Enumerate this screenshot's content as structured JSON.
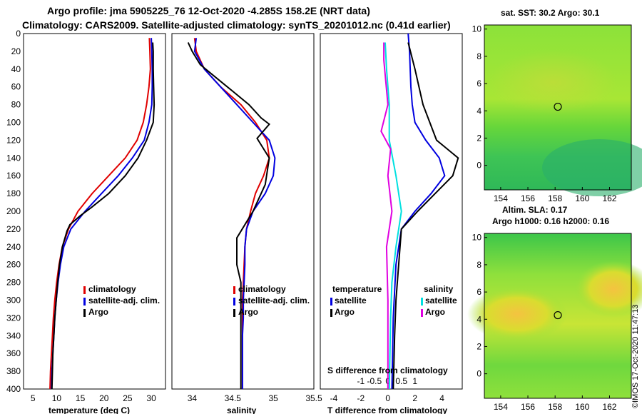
{
  "header": {
    "title_line1": "Argo profile: jma 5905225_76 12-Oct-2020 -4.285S 158.2E (NRT data)",
    "title_line2": "Climatology: CARS2009. Satellite-adjusted climatology: synTS_20201012.nc (0.41d earlier)"
  },
  "colors": {
    "climatology": "#e00000",
    "satellite": "#0000e0",
    "argo": "#000000",
    "t_satellite": "#00e0e0",
    "s_diff": "#e000e0"
  },
  "chart_data": [
    {
      "type": "line",
      "name": "temperature",
      "xlabel": "temperature (deg C)",
      "xlim": [
        3,
        33
      ],
      "ylim": [
        400,
        0
      ],
      "xticks": [
        "5",
        "10",
        "15",
        "20",
        "25",
        "30"
      ],
      "yticks": [
        "0",
        "20",
        "40",
        "60",
        "80",
        "100",
        "120",
        "140",
        "160",
        "180",
        "200",
        "220",
        "240",
        "260",
        "280",
        "300",
        "320",
        "340",
        "360",
        "380",
        "400"
      ],
      "legend": [
        "climatology",
        "satellite-adj. clim.",
        "Argo"
      ],
      "series": [
        {
          "name": "climatology",
          "points": [
            [
              29.6,
              5
            ],
            [
              29.7,
              20
            ],
            [
              29.8,
              40
            ],
            [
              29.5,
              60
            ],
            [
              29.0,
              80
            ],
            [
              28.3,
              100
            ],
            [
              27.0,
              120
            ],
            [
              24.5,
              140
            ],
            [
              21.0,
              160
            ],
            [
              17.5,
              180
            ],
            [
              14.5,
              200
            ],
            [
              12.5,
              220
            ],
            [
              11.2,
              240
            ],
            [
              10.5,
              260
            ],
            [
              10.0,
              280
            ],
            [
              9.6,
              300
            ],
            [
              9.3,
              320
            ],
            [
              9.1,
              340
            ],
            [
              8.9,
              360
            ],
            [
              8.7,
              380
            ],
            [
              8.6,
              400
            ]
          ]
        },
        {
          "name": "satellite-adj. clim.",
          "points": [
            [
              30.0,
              5
            ],
            [
              30.1,
              20
            ],
            [
              30.2,
              40
            ],
            [
              30.2,
              60
            ],
            [
              30.1,
              80
            ],
            [
              29.5,
              100
            ],
            [
              28.5,
              120
            ],
            [
              26.0,
              140
            ],
            [
              23.0,
              160
            ],
            [
              19.5,
              180
            ],
            [
              16.0,
              200
            ],
            [
              13.0,
              220
            ],
            [
              11.5,
              240
            ],
            [
              10.8,
              260
            ],
            [
              10.3,
              280
            ],
            [
              9.9,
              300
            ],
            [
              9.6,
              320
            ],
            [
              9.4,
              340
            ],
            [
              9.2,
              360
            ],
            [
              9.0,
              380
            ],
            [
              8.9,
              400
            ]
          ]
        },
        {
          "name": "Argo",
          "points": [
            [
              30.3,
              10
            ],
            [
              30.4,
              20
            ],
            [
              30.4,
              40
            ],
            [
              30.5,
              60
            ],
            [
              30.6,
              80
            ],
            [
              30.4,
              100
            ],
            [
              29.0,
              120
            ],
            [
              27.2,
              140
            ],
            [
              24.5,
              160
            ],
            [
              21.0,
              180
            ],
            [
              17.5,
              195
            ],
            [
              15.0,
              205
            ],
            [
              12.8,
              215
            ],
            [
              12.2,
              222
            ],
            [
              11.2,
              240
            ],
            [
              10.6,
              260
            ],
            [
              10.2,
              280
            ],
            [
              9.9,
              300
            ],
            [
              9.6,
              320
            ],
            [
              9.4,
              340
            ],
            [
              9.2,
              360
            ],
            [
              9.1,
              380
            ],
            [
              9.0,
              400
            ]
          ]
        }
      ]
    },
    {
      "type": "line",
      "name": "salinity",
      "xlabel": "salinity",
      "xlim": [
        33.75,
        35.5
      ],
      "ylim": [
        400,
        0
      ],
      "xticks": [
        "34",
        "34.5",
        "35",
        "35.5"
      ],
      "legend": [
        "climatology",
        "satellite-adj. clim.",
        "Argo"
      ],
      "series": [
        {
          "name": "climatology",
          "points": [
            [
              34.03,
              5
            ],
            [
              34.05,
              20
            ],
            [
              34.15,
              40
            ],
            [
              34.35,
              60
            ],
            [
              34.6,
              80
            ],
            [
              34.78,
              100
            ],
            [
              34.92,
              120
            ],
            [
              34.95,
              140
            ],
            [
              34.88,
              160
            ],
            [
              34.78,
              180
            ],
            [
              34.72,
              200
            ],
            [
              34.67,
              220
            ],
            [
              34.65,
              240
            ],
            [
              34.64,
              260
            ],
            [
              34.63,
              280
            ],
            [
              34.62,
              300
            ],
            [
              34.62,
              320
            ],
            [
              34.62,
              340
            ],
            [
              34.62,
              360
            ],
            [
              34.62,
              380
            ],
            [
              34.62,
              400
            ]
          ]
        },
        {
          "name": "satellite-adj. clim.",
          "points": [
            [
              34.05,
              5
            ],
            [
              34.03,
              20
            ],
            [
              34.15,
              40
            ],
            [
              34.35,
              60
            ],
            [
              34.55,
              80
            ],
            [
              34.75,
              100
            ],
            [
              34.95,
              120
            ],
            [
              35.02,
              140
            ],
            [
              35.0,
              160
            ],
            [
              34.9,
              180
            ],
            [
              34.75,
              200
            ],
            [
              34.67,
              220
            ],
            [
              34.65,
              240
            ],
            [
              34.65,
              260
            ],
            [
              34.64,
              280
            ],
            [
              34.63,
              300
            ],
            [
              34.63,
              320
            ],
            [
              34.62,
              340
            ],
            [
              34.62,
              360
            ],
            [
              34.62,
              380
            ],
            [
              34.62,
              400
            ]
          ]
        },
        {
          "name": "Argo",
          "points": [
            [
              33.95,
              10
            ],
            [
              34.0,
              20
            ],
            [
              34.1,
              35
            ],
            [
              34.3,
              50
            ],
            [
              34.5,
              65
            ],
            [
              34.7,
              80
            ],
            [
              34.85,
              95
            ],
            [
              34.95,
              102
            ],
            [
              34.8,
              118
            ],
            [
              34.95,
              140
            ],
            [
              34.9,
              170
            ],
            [
              34.75,
              200
            ],
            [
              34.55,
              230
            ],
            [
              34.55,
              260
            ],
            [
              34.6,
              280
            ],
            [
              34.6,
              320
            ],
            [
              34.6,
              360
            ],
            [
              34.6,
              400
            ]
          ]
        }
      ]
    },
    {
      "type": "line",
      "name": "difference",
      "xlabel": "T difference from climatology",
      "top_label": "S difference from climatology",
      "xlim": [
        -5.0,
        5.5
      ],
      "ylim": [
        400,
        0
      ],
      "xticks": [
        "-4",
        "-2",
        "0",
        "2",
        "4"
      ],
      "sticks": [
        "-1",
        "-0.5",
        "0",
        "0.5",
        "1"
      ],
      "legend_left": {
        "title": "temperature",
        "items": [
          "satellite",
          "Argo"
        ]
      },
      "legend_right": {
        "title": "salinity",
        "items": [
          "satellite",
          "Argo"
        ]
      },
      "series": [
        {
          "name": "T satellite",
          "color_key": "satellite",
          "points": [
            [
              1.5,
              0
            ],
            [
              1.6,
              20
            ],
            [
              1.7,
              60
            ],
            [
              1.8,
              80
            ],
            [
              2.0,
              100
            ],
            [
              2.8,
              120
            ],
            [
              3.8,
              140
            ],
            [
              4.2,
              160
            ],
            [
              3.2,
              180
            ],
            [
              2.0,
              200
            ],
            [
              1.0,
              220
            ],
            [
              0.6,
              260
            ],
            [
              0.4,
              320
            ],
            [
              0.3,
              400
            ]
          ]
        },
        {
          "name": "T Argo",
          "color_key": "argo",
          "points": [
            [
              1.5,
              10
            ],
            [
              2.0,
              40
            ],
            [
              2.6,
              80
            ],
            [
              3.6,
              120
            ],
            [
              5.2,
              140
            ],
            [
              4.8,
              160
            ],
            [
              3.5,
              180
            ],
            [
              2.2,
              200
            ],
            [
              1.0,
              220
            ],
            [
              0.8,
              260
            ],
            [
              0.6,
              300
            ],
            [
              0.5,
              340
            ],
            [
              0.4,
              400
            ]
          ]
        },
        {
          "name": "S satellite",
          "color_key": "t_satellite",
          "points": [
            [
              -0.2,
              10
            ],
            [
              -0.1,
              40
            ],
            [
              0.1,
              80
            ],
            [
              0.1,
              120
            ],
            [
              0.6,
              160
            ],
            [
              1.0,
              200
            ],
            [
              0.6,
              240
            ],
            [
              0.3,
              280
            ],
            [
              0.2,
              320
            ],
            [
              0.1,
              400
            ]
          ]
        },
        {
          "name": "S Argo",
          "color_key": "s_diff",
          "points": [
            [
              -0.3,
              10
            ],
            [
              -0.3,
              30
            ],
            [
              0.0,
              80
            ],
            [
              -0.5,
              110
            ],
            [
              0.2,
              130
            ],
            [
              0.0,
              160
            ],
            [
              0.3,
              200
            ],
            [
              -0.1,
              240
            ],
            [
              0.0,
              300
            ],
            [
              0.0,
              400
            ]
          ]
        }
      ]
    },
    {
      "type": "heatmap",
      "name": "sst_map",
      "title": "sat. SST: 30.2 Argo: 30.1",
      "xticks": [
        "154",
        "156",
        "158",
        "160",
        "162"
      ],
      "yticks": [
        "10",
        "8",
        "6",
        "4",
        "2",
        "0"
      ],
      "xlim": [
        152.8,
        163.6
      ],
      "ylim": [
        -1.8,
        10.3
      ],
      "marker": [
        158.2,
        4.3
      ]
    },
    {
      "type": "heatmap",
      "name": "sla_map",
      "title_line1": "Altim. SLA: 0.17",
      "title_line2": "Argo h1000: 0.16 h2000: 0.16",
      "xticks": [
        "154",
        "156",
        "158",
        "160",
        "162"
      ],
      "yticks": [
        "10",
        "8",
        "6",
        "4",
        "2",
        "0"
      ],
      "xlim": [
        152.8,
        163.6
      ],
      "ylim": [
        -1.8,
        10.3
      ],
      "marker": [
        158.2,
        4.3
      ]
    }
  ],
  "footer": {
    "imos_stamp": "©IMOS 17-Oct-2020 11:47:13"
  }
}
